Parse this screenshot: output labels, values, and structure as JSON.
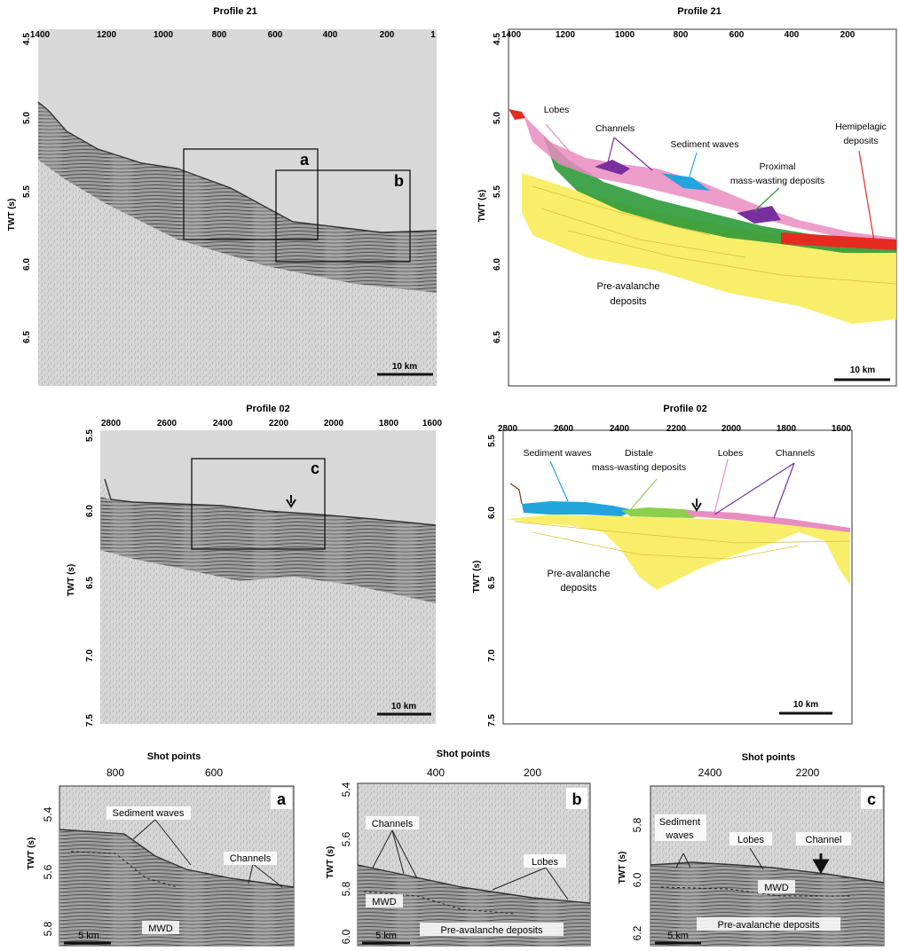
{
  "panels": {
    "seis21": {
      "title": "Profile 21",
      "x_ticks": [
        "1400",
        "1200",
        "1000",
        "800",
        "600",
        "400",
        "200",
        "1"
      ],
      "y_ticks": [
        "4.5",
        "5.0",
        "5.5",
        "6.0",
        "6.5"
      ],
      "y_label": "TWT (s)",
      "boxes": [
        "a",
        "b"
      ],
      "scale": "10 km"
    },
    "interp21": {
      "title": "Profile 21",
      "x_ticks": [
        "1400",
        "1200",
        "1000",
        "800",
        "600",
        "400",
        "200"
      ],
      "y_ticks": [
        "4.5",
        "5.0",
        "5.5",
        "6.0",
        "6.5"
      ],
      "y_label": "TWT (s)",
      "labels": {
        "lobes": "Lobes",
        "channels": "Channels",
        "sediment_waves": "Sediment waves",
        "proximal_1": "Proximal",
        "proximal_2": "mass-wasting deposits",
        "hemi_1": "Hemipelagic",
        "hemi_2": "deposits",
        "pre_1": "Pre-avalanche",
        "pre_2": "deposits"
      },
      "scale": "10 km"
    },
    "seis02": {
      "title": "Profile 02",
      "x_ticks": [
        "2800",
        "2600",
        "2400",
        "2200",
        "2000",
        "1800",
        "1600"
      ],
      "y_ticks": [
        "5.5",
        "6.0",
        "6.5",
        "7.0",
        "7.5"
      ],
      "y_label": "TWT (s)",
      "boxes": [
        "c"
      ],
      "scale": "10 km"
    },
    "interp02": {
      "title": "Profile 02",
      "x_ticks": [
        "2800",
        "2600",
        "2400",
        "2200",
        "2000",
        "1800",
        "1600"
      ],
      "y_ticks": [
        "5.5",
        "6.0",
        "6.5",
        "7.0",
        "7.5"
      ],
      "y_label": "TWT (s)",
      "labels": {
        "sediment_waves": "Sediment waves",
        "distale_1": "Distale",
        "distale_2": "mass-wasting deposits",
        "lobes": "Lobes",
        "channels": "Channels",
        "pre_1": "Pre-avalanche",
        "pre_2": "deposits"
      },
      "scale": "10 km"
    },
    "zoom_a": {
      "title": "Shot points",
      "x_ticks": [
        "800",
        "600"
      ],
      "y_ticks": [
        "5.4",
        "5.6",
        "5.8"
      ],
      "y_label": "TWT (s)",
      "letter": "a",
      "labels": {
        "sediment_waves": "Sediment waves",
        "channels": "Channels",
        "mwd": "MWD"
      },
      "scale": "5 km"
    },
    "zoom_b": {
      "title": "Shot points",
      "x_ticks": [
        "400",
        "200"
      ],
      "y_ticks": [
        "5.4",
        "5.6",
        "5.8",
        "6.0"
      ],
      "y_label": "TWT (s)",
      "letter": "b",
      "labels": {
        "channels": "Channels",
        "lobes": "Lobes",
        "mwd": "MWD",
        "pre": "Pre-avalanche deposits"
      },
      "scale": "5 km"
    },
    "zoom_c": {
      "title": "Shot points",
      "x_ticks": [
        "2400",
        "2200"
      ],
      "y_ticks": [
        "5.8",
        "6.0",
        "6.2"
      ],
      "y_label": "TWT (s)",
      "letter": "c",
      "labels": {
        "sed_1": "Sediment",
        "sed_2": "waves",
        "lobes": "Lobes",
        "channel": "Channel",
        "mwd": "MWD",
        "pre": "Pre-avalanche deposits"
      },
      "scale": "5 km"
    }
  },
  "colors": {
    "seismic_bg": "#c9c9c9",
    "lobes": "#e98cc0",
    "channels": "#7a2f9e",
    "sediment_waves": "#22a4dd",
    "proximal": "#2e9a3a",
    "hemipelagic": "#e52b1f",
    "pre_avalanche": "#f7ec5a",
    "distale": "#8ccf4a"
  }
}
